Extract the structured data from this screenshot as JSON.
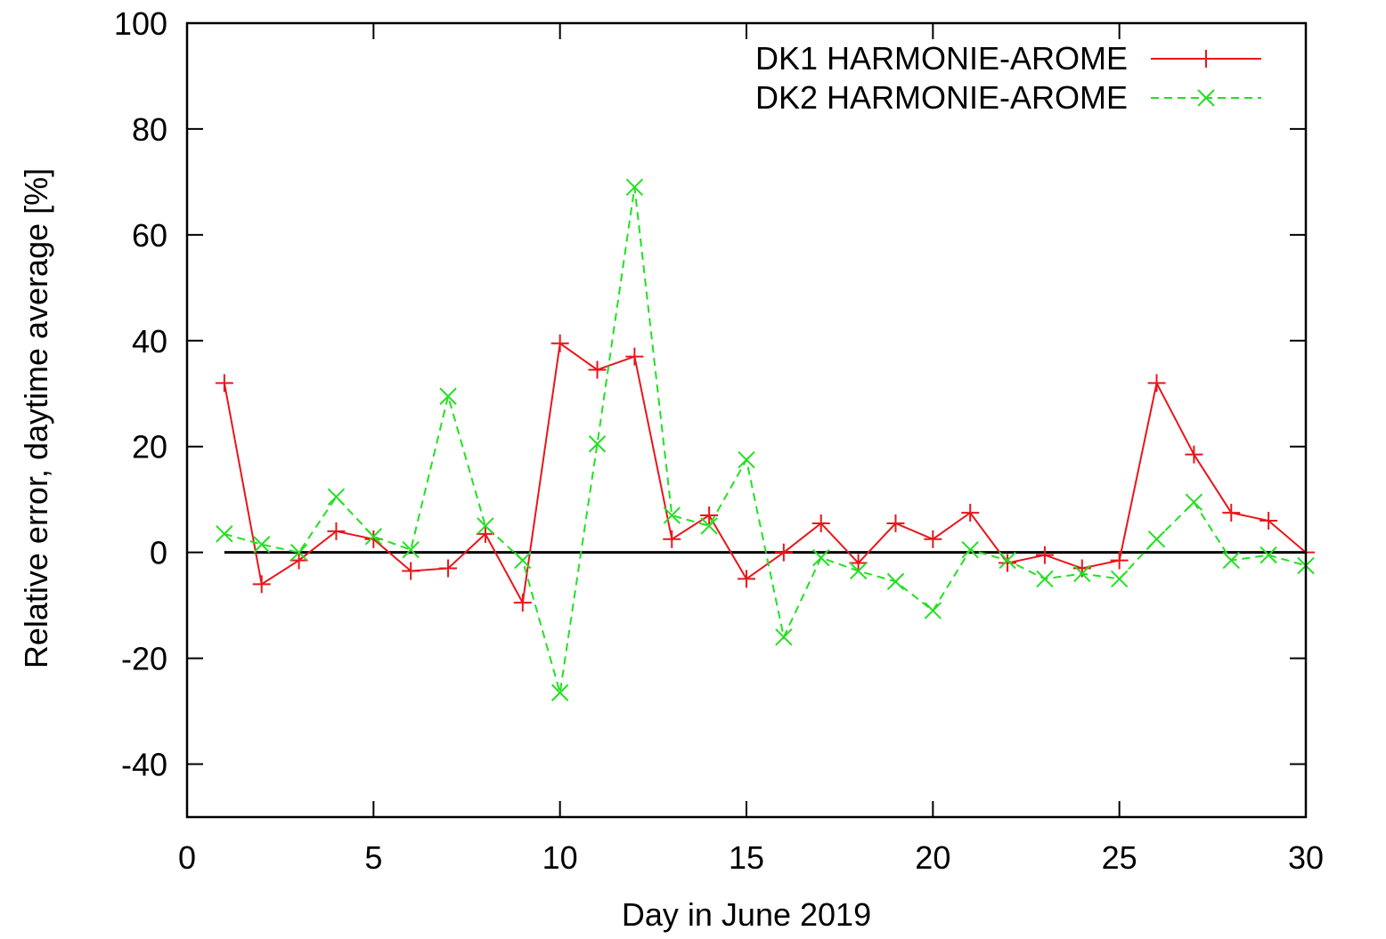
{
  "chart_data": {
    "type": "line",
    "xlabel": "Day in June 2019",
    "ylabel": "Relative error, daytime average [%]",
    "xlim": [
      0,
      30
    ],
    "ylim": [
      -50,
      100
    ],
    "xticks": [
      0,
      5,
      10,
      15,
      20,
      25,
      30
    ],
    "yticks": [
      -40,
      -20,
      0,
      20,
      40,
      60,
      80,
      100
    ],
    "grid": false,
    "legend_position": "top-right",
    "zero_line": true,
    "series": [
      {
        "name": "DK1 HARMONIE-AROME",
        "color": "#e8161b",
        "line_style": "solid",
        "marker": "plus",
        "x": [
          1,
          2,
          3,
          4,
          5,
          6,
          7,
          8,
          9,
          10,
          11,
          12,
          13,
          14,
          15,
          16,
          17,
          18,
          19,
          20,
          21,
          22,
          23,
          24,
          25,
          26,
          27,
          28,
          29,
          30
        ],
        "y": [
          32,
          -6,
          -1.5,
          4,
          2.5,
          -3.5,
          -3,
          3.5,
          -9.5,
          39.5,
          34.5,
          37,
          2.5,
          7,
          -5,
          0,
          5.5,
          -2,
          5.5,
          2.5,
          7.5,
          -2,
          -0.5,
          -3,
          -1.5,
          32,
          18.5,
          7.5,
          6,
          0
        ]
      },
      {
        "name": "DK2 HARMONIE-AROME",
        "color": "#22e022",
        "line_style": "dashed",
        "marker": "x",
        "x": [
          1,
          2,
          3,
          4,
          5,
          6,
          7,
          8,
          9,
          10,
          11,
          12,
          13,
          14,
          15,
          16,
          17,
          18,
          19,
          20,
          21,
          22,
          23,
          24,
          25,
          26,
          27,
          28,
          29,
          30
        ],
        "y": [
          3.5,
          1.5,
          0,
          10.5,
          3,
          0.5,
          29.5,
          5,
          -1.5,
          -26.5,
          20.5,
          69,
          7,
          5,
          17.5,
          -16,
          -1,
          -3.5,
          -5.5,
          -11,
          0.5,
          -1.5,
          -5,
          -4,
          -5,
          2.5,
          9.5,
          -1.5,
          -0.5,
          -2.5
        ]
      }
    ]
  }
}
